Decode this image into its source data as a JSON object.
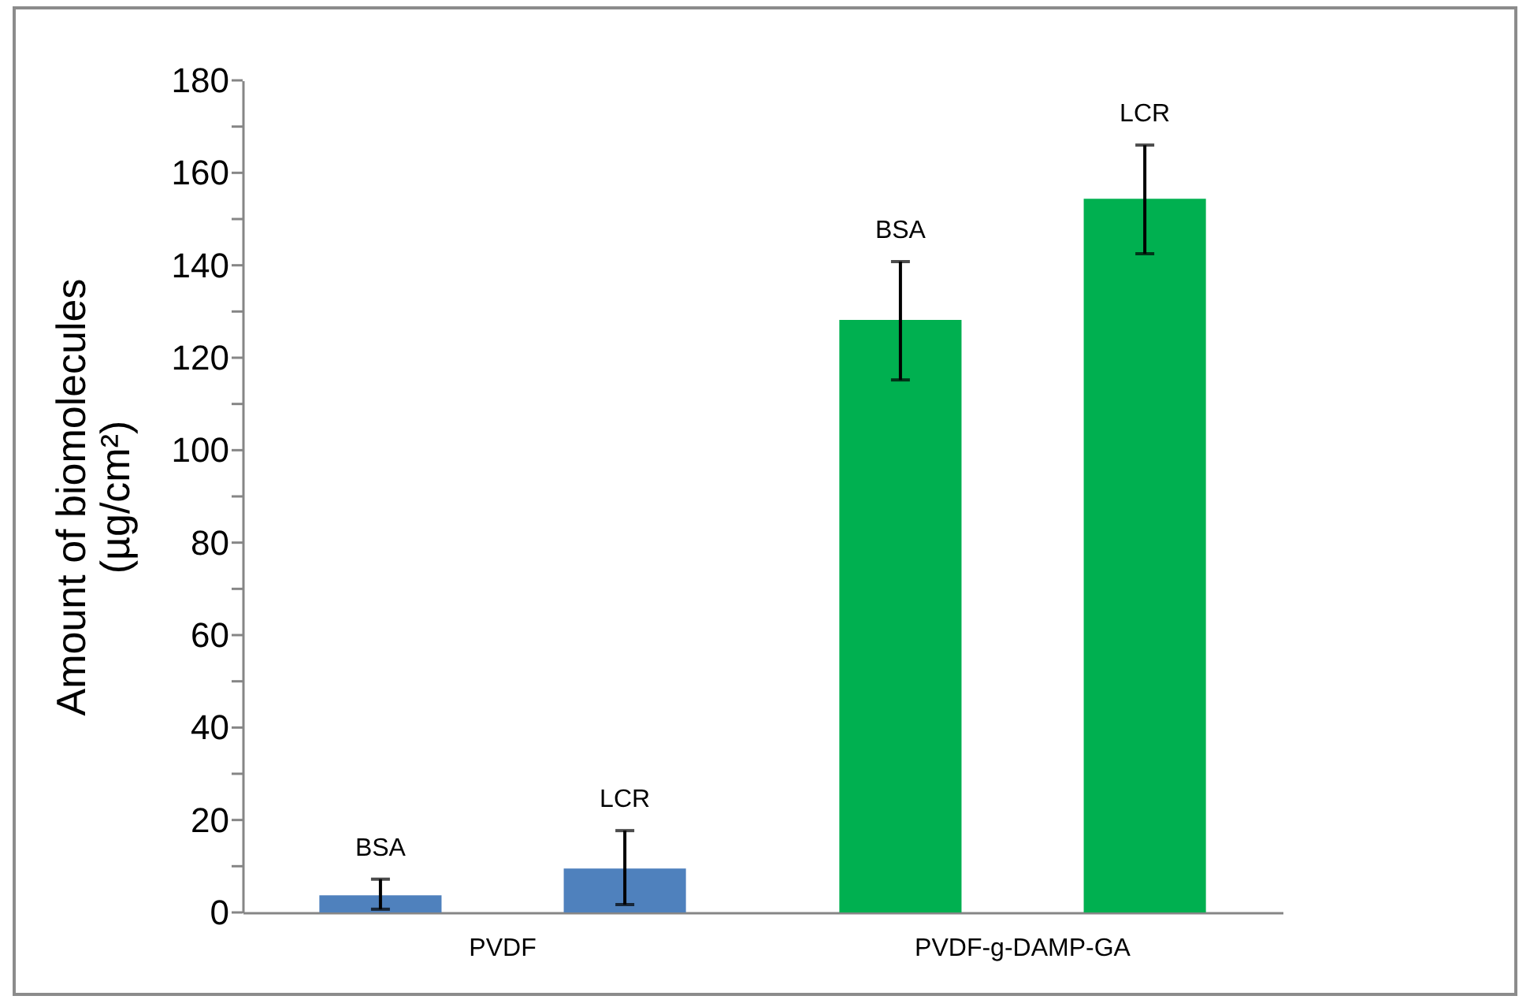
{
  "chart_data": {
    "type": "bar",
    "ylabel": "Amount of biomolecules\n(µg/cm²)",
    "categories": [
      "PVDF",
      "PVDF-g-DAMP-GA"
    ],
    "ylim": [
      0,
      180
    ],
    "yticks": [
      0,
      {
        "value": 10,
        "label": null
      },
      20,
      {
        "value": 30,
        "label": null
      },
      40,
      {
        "value": 50,
        "label": null
      },
      60,
      {
        "value": 70,
        "label": null
      },
      80,
      {
        "value": 90,
        "label": null
      },
      100,
      {
        "value": 110,
        "label": null
      },
      120,
      {
        "value": 130,
        "label": null
      },
      140,
      {
        "value": 150,
        "label": null
      },
      160,
      {
        "value": 170,
        "label": null
      },
      180
    ],
    "series": [
      {
        "name": "BSA",
        "values": [
          3.7,
          128.2
        ],
        "colors": [
          "#4f81bd",
          "#00b050"
        ],
        "errors": [
          [
            0.7,
            7.2
          ],
          [
            115.2,
            140.8
          ]
        ]
      },
      {
        "name": "LCR",
        "values": [
          9.5,
          154.4
        ],
        "colors": [
          "#4f81bd",
          "#00b050"
        ],
        "errors": [
          [
            1.7,
            17.7
          ],
          [
            142.5,
            166
          ]
        ]
      }
    ]
  }
}
